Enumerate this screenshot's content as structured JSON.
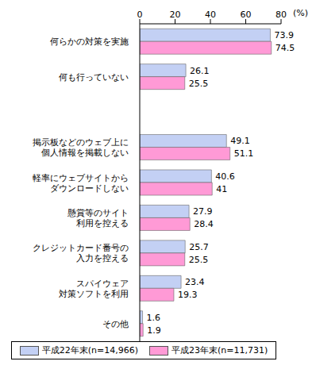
{
  "chart_data": {
    "type": "bar",
    "orientation": "horizontal",
    "xlabel": "(%)",
    "categories": [
      "何らかの対策を実施",
      "何も行っていない",
      null,
      "掲示板などのウェブ上に\n個人情報を掲載しない",
      "軽率にウェブサイトから\nダウンロードしない",
      "懸賞等のサイト\n利用を控える",
      "クレジットカード番号の\n入力を控える",
      "スパイウェア\n対策ソフトを利用",
      "その他"
    ],
    "series": [
      {
        "name": "平成22年末(n=14,966)",
        "color": "#c3d0f4",
        "values": [
          73.9,
          26.1,
          null,
          49.1,
          40.6,
          27.9,
          25.7,
          23.4,
          1.6
        ]
      },
      {
        "name": "平成23年末(n=11,731)",
        "color": "#ff9ad6",
        "values": [
          74.5,
          25.5,
          null,
          51.1,
          41.0,
          28.4,
          25.5,
          19.3,
          1.9
        ]
      }
    ],
    "xlim": [
      0,
      80
    ],
    "xticks": [
      0,
      20,
      40,
      60,
      80
    ],
    "grid": false,
    "data_labels": true,
    "legend": "bottom"
  }
}
